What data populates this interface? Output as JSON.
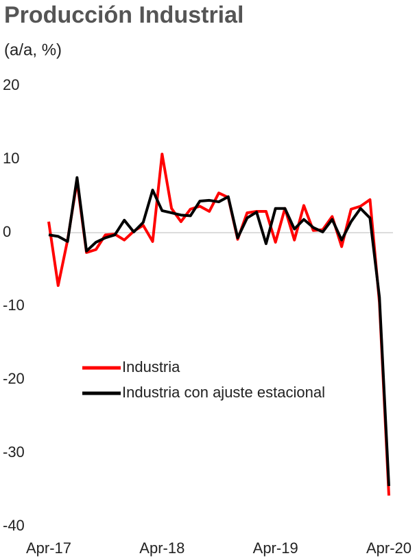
{
  "chart_data": {
    "type": "line",
    "title": "Producción Industrial",
    "subtitle": "(a/a, %)",
    "categories": [
      "Apr-17",
      null,
      null,
      null,
      null,
      null,
      null,
      null,
      null,
      null,
      null,
      null,
      "Apr-18",
      null,
      null,
      null,
      null,
      null,
      null,
      null,
      null,
      null,
      null,
      null,
      "Apr-19",
      null,
      null,
      null,
      null,
      null,
      null,
      null,
      null,
      null,
      null,
      null,
      "Apr-20"
    ],
    "series": [
      {
        "name": "Industria",
        "color": "#ff0000",
        "values": [
          1.5,
          -7.2,
          -1.0,
          7.0,
          -2.7,
          -2.3,
          -0.3,
          -0.2,
          -1.0,
          0.2,
          1.0,
          -1.2,
          10.7,
          3.3,
          1.5,
          3.2,
          3.6,
          2.9,
          5.4,
          4.8,
          -0.9,
          2.7,
          2.9,
          2.9,
          -1.3,
          3.3,
          -1.0,
          3.7,
          0.3,
          0.4,
          2.2,
          -1.9,
          3.2,
          3.6,
          4.5,
          -9.5,
          -35.8
        ]
      },
      {
        "name": "Industria con ajuste estacional",
        "color": "#000000",
        "values": [
          -0.3,
          -0.5,
          -1.2,
          7.5,
          -2.5,
          -1.3,
          -0.7,
          -0.3,
          1.7,
          0.1,
          1.4,
          5.8,
          3.0,
          2.7,
          2.4,
          2.3,
          4.3,
          4.4,
          4.2,
          4.9,
          -0.7,
          2.0,
          2.8,
          -1.5,
          3.3,
          3.3,
          0.5,
          1.8,
          0.7,
          0.1,
          1.8,
          -1.0,
          1.5,
          3.3,
          2.0,
          -8.8,
          -34.5
        ]
      }
    ],
    "ylim": [
      -40,
      20
    ],
    "yticks": [
      -40,
      -30,
      -20,
      -10,
      0,
      10,
      20
    ],
    "grid": false,
    "legend": "left"
  }
}
